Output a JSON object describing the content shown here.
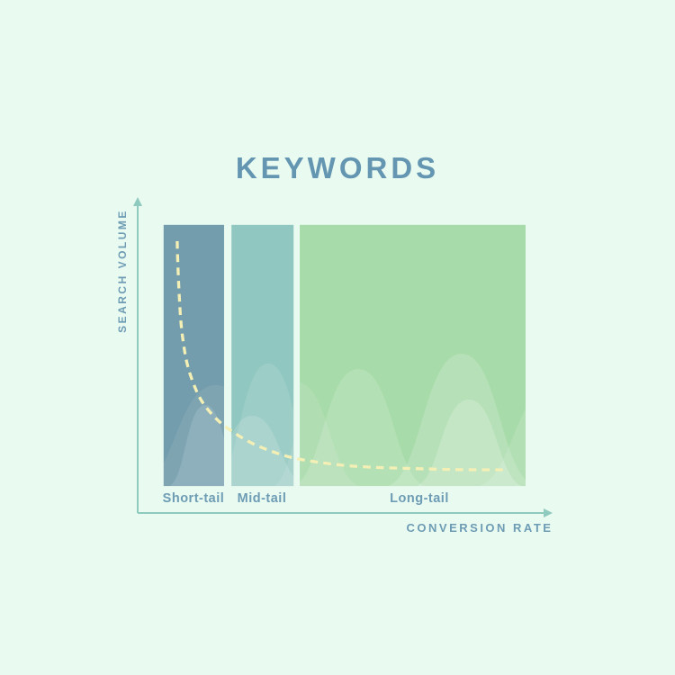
{
  "page": {
    "background": "#e9faf0",
    "text_color": "#6496b2",
    "secondary_text_color": "#6d9cb4",
    "axis_color": "#8fcabe"
  },
  "title": "KEYWORDS",
  "chart_data": {
    "type": "area",
    "title": "KEYWORDS",
    "xlabel": "CONVERSION RATE",
    "ylabel": "SEARCH VOLUME",
    "legend": "none",
    "grid": false,
    "axes_numeric": false,
    "categories": [
      "Short-tail",
      "Mid-tail",
      "Long-tail"
    ],
    "bands": [
      {
        "label": "Short-tail",
        "color": "#739dac",
        "x0": 0.063,
        "x1": 0.21
      },
      {
        "label": "Mid-tail",
        "color": "#90c7c0",
        "x0": 0.228,
        "x1": 0.379
      },
      {
        "label": "Long-tail",
        "color": "#a8dbaa",
        "x0": 0.394,
        "x1": 0.943
      }
    ],
    "band_top": 0.92,
    "band_bottom": 0.086,
    "curve": {
      "name": "search-volume-vs-conversion-curve",
      "style": "dashed",
      "color": "#f4efb5",
      "points": [
        [
          0.096,
          0.868
        ],
        [
          0.098,
          0.776
        ],
        [
          0.101,
          0.69
        ],
        [
          0.105,
          0.603
        ],
        [
          0.112,
          0.532
        ],
        [
          0.12,
          0.474
        ],
        [
          0.134,
          0.417
        ],
        [
          0.151,
          0.365
        ],
        [
          0.173,
          0.325
        ],
        [
          0.201,
          0.287
        ],
        [
          0.234,
          0.256
        ],
        [
          0.274,
          0.224
        ],
        [
          0.322,
          0.198
        ],
        [
          0.376,
          0.175
        ],
        [
          0.442,
          0.161
        ],
        [
          0.519,
          0.149
        ],
        [
          0.606,
          0.144
        ],
        [
          0.694,
          0.141
        ],
        [
          0.792,
          0.138
        ],
        [
          0.891,
          0.138
        ]
      ]
    }
  }
}
